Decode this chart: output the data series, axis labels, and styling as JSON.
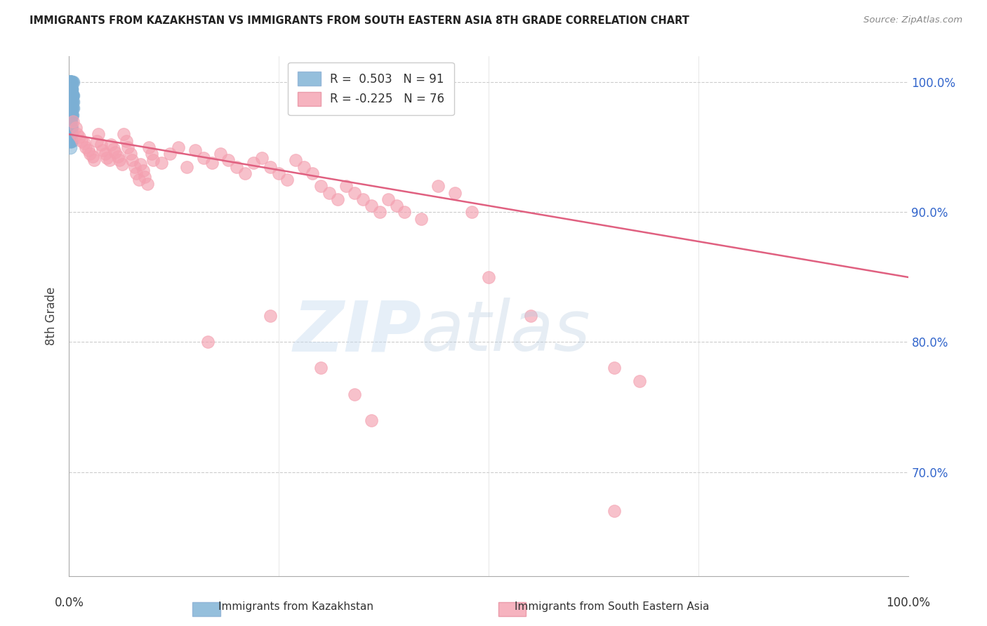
{
  "title": "IMMIGRANTS FROM KAZAKHSTAN VS IMMIGRANTS FROM SOUTH EASTERN ASIA 8TH GRADE CORRELATION CHART",
  "source": "Source: ZipAtlas.com",
  "ylabel": "8th Grade",
  "right_yticks": [
    100.0,
    90.0,
    80.0,
    70.0
  ],
  "legend_label_kaz": "Immigrants from Kazakhstan",
  "legend_label_sea": "Immigrants from South Eastern Asia",
  "blue_color": "#7BAFD4",
  "pink_color": "#F4A0B0",
  "trendline_pink_color": "#E06080",
  "background": "#FFFFFF",
  "kaz_x": [
    0.001,
    0.001,
    0.001,
    0.002,
    0.002,
    0.002,
    0.002,
    0.002,
    0.003,
    0.003,
    0.003,
    0.003,
    0.003,
    0.004,
    0.004,
    0.004,
    0.004,
    0.005,
    0.005,
    0.005,
    0.001,
    0.001,
    0.001,
    0.002,
    0.002,
    0.002,
    0.003,
    0.003,
    0.003,
    0.004,
    0.001,
    0.001,
    0.002,
    0.002,
    0.003,
    0.003,
    0.004,
    0.004,
    0.005,
    0.001,
    0.001,
    0.002,
    0.002,
    0.003,
    0.003,
    0.001,
    0.001,
    0.002,
    0.002,
    0.003,
    0.001,
    0.001,
    0.002,
    0.002,
    0.003,
    0.001,
    0.001,
    0.002,
    0.002,
    0.003,
    0.001,
    0.001,
    0.002,
    0.003,
    0.001,
    0.002,
    0.001,
    0.002,
    0.001,
    0.002,
    0.001,
    0.001,
    0.002,
    0.001,
    0.002,
    0.001,
    0.002,
    0.001,
    0.001,
    0.002,
    0.001,
    0.001,
    0.001,
    0.001,
    0.001,
    0.001,
    0.001,
    0.001,
    0.001,
    0.001,
    0.001
  ],
  "kaz_y": [
    1.0,
    1.0,
    0.99,
    1.0,
    0.995,
    0.99,
    0.985,
    0.98,
    1.0,
    0.99,
    0.985,
    0.98,
    0.975,
    1.0,
    0.99,
    0.98,
    0.975,
    1.0,
    0.99,
    0.985,
    0.995,
    0.99,
    0.985,
    0.995,
    0.99,
    0.985,
    0.995,
    0.99,
    0.985,
    0.99,
    1.0,
    0.99,
    1.0,
    0.99,
    0.995,
    0.99,
    0.99,
    0.985,
    0.98,
    0.98,
    0.975,
    0.985,
    0.98,
    0.985,
    0.98,
    0.97,
    0.965,
    0.975,
    0.97,
    0.975,
    0.96,
    0.955,
    0.965,
    0.96,
    0.965,
    0.955,
    0.95,
    0.96,
    0.955,
    0.96,
    0.96,
    0.955,
    0.96,
    0.955,
    0.965,
    0.965,
    0.97,
    0.97,
    0.975,
    0.975,
    0.98,
    0.985,
    0.985,
    0.99,
    0.99,
    0.995,
    0.995,
    1.0,
    1.0,
    1.0,
    1.0,
    1.0,
    1.0,
    1.0,
    1.0,
    1.0,
    1.0,
    1.0,
    1.0,
    1.0,
    1.0
  ],
  "sea_x": [
    0.005,
    0.008,
    0.01,
    0.012,
    0.015,
    0.018,
    0.02,
    0.023,
    0.025,
    0.028,
    0.03,
    0.033,
    0.035,
    0.038,
    0.04,
    0.043,
    0.045,
    0.048,
    0.05,
    0.053,
    0.055,
    0.058,
    0.06,
    0.063,
    0.065,
    0.068,
    0.07,
    0.073,
    0.075,
    0.078,
    0.08,
    0.083,
    0.085,
    0.088,
    0.09,
    0.093,
    0.095,
    0.098,
    0.1,
    0.11,
    0.12,
    0.13,
    0.14,
    0.15,
    0.16,
    0.17,
    0.18,
    0.19,
    0.2,
    0.21,
    0.22,
    0.23,
    0.24,
    0.25,
    0.26,
    0.27,
    0.28,
    0.29,
    0.3,
    0.31,
    0.32,
    0.33,
    0.34,
    0.35,
    0.36,
    0.37,
    0.38,
    0.39,
    0.4,
    0.42,
    0.44,
    0.46,
    0.48,
    0.5,
    0.55,
    0.65,
    0.68
  ],
  "sea_y": [
    0.97,
    0.965,
    0.96,
    0.958,
    0.955,
    0.953,
    0.95,
    0.948,
    0.945,
    0.943,
    0.94,
    0.955,
    0.96,
    0.952,
    0.948,
    0.945,
    0.942,
    0.94,
    0.952,
    0.949,
    0.946,
    0.943,
    0.94,
    0.937,
    0.96,
    0.955,
    0.95,
    0.945,
    0.94,
    0.935,
    0.93,
    0.925,
    0.937,
    0.932,
    0.927,
    0.922,
    0.95,
    0.945,
    0.94,
    0.938,
    0.945,
    0.95,
    0.935,
    0.948,
    0.942,
    0.938,
    0.945,
    0.94,
    0.935,
    0.93,
    0.938,
    0.942,
    0.935,
    0.93,
    0.925,
    0.94,
    0.935,
    0.93,
    0.92,
    0.915,
    0.91,
    0.92,
    0.915,
    0.91,
    0.905,
    0.9,
    0.91,
    0.905,
    0.9,
    0.895,
    0.92,
    0.915,
    0.9,
    0.85,
    0.82,
    0.78,
    0.77
  ],
  "sea_outliers_x": [
    0.165,
    0.24,
    0.3,
    0.34,
    0.36,
    0.65
  ],
  "sea_outliers_y": [
    0.8,
    0.82,
    0.78,
    0.76,
    0.74,
    0.67
  ],
  "sea_trend_x": [
    0.0,
    1.0
  ],
  "sea_trend_y": [
    0.96,
    0.85
  ],
  "xlim": [
    0.0,
    1.0
  ],
  "ylim": [
    0.62,
    1.02
  ],
  "xtick_positions": [
    0.0,
    0.25,
    0.5,
    0.75,
    1.0
  ]
}
